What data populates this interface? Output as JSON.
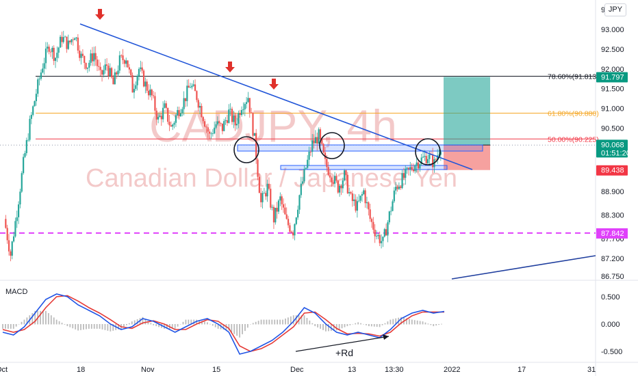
{
  "chart_data": [
    {
      "type": "candlestick",
      "title": "CADJPY, 4h",
      "subtitle": "Canadian Dollar / Japanese Yen",
      "currency": "JPY",
      "ylim": [
        86.5,
        93.25
      ],
      "y_ticks": [
        "93.000",
        "92.500",
        "92.000",
        "91.500",
        "91.000",
        "90.500",
        "88.900",
        "88.300",
        "87.700",
        "87.200",
        "86.750"
      ],
      "y_top_partial": "93",
      "x_ticks": [
        "Oct",
        "18",
        "Nov",
        "15",
        "Dec",
        "13",
        "13:30",
        "2022",
        "17",
        "31"
      ],
      "price_path": [
        {
          "t": 0,
          "p": 88.2
        },
        {
          "t": 2,
          "p": 87.3
        },
        {
          "t": 4,
          "p": 88.4
        },
        {
          "t": 6,
          "p": 89.6
        },
        {
          "t": 8,
          "p": 90.6
        },
        {
          "t": 10,
          "p": 91.4
        },
        {
          "t": 12,
          "p": 92.1
        },
        {
          "t": 14,
          "p": 92.6
        },
        {
          "t": 16,
          "p": 92.3
        },
        {
          "t": 18,
          "p": 92.8
        },
        {
          "t": 20,
          "p": 92.6
        },
        {
          "t": 22,
          "p": 92.9
        },
        {
          "t": 24,
          "p": 92.3
        },
        {
          "t": 26,
          "p": 92.1
        },
        {
          "t": 28,
          "p": 92.4
        },
        {
          "t": 30,
          "p": 91.8
        },
        {
          "t": 32,
          "p": 92.1
        },
        {
          "t": 34,
          "p": 91.6
        },
        {
          "t": 36,
          "p": 92.2
        },
        {
          "t": 38,
          "p": 92.3
        },
        {
          "t": 40,
          "p": 91.5
        },
        {
          "t": 42,
          "p": 92.0
        },
        {
          "t": 44,
          "p": 91.6
        },
        {
          "t": 46,
          "p": 91.3
        },
        {
          "t": 48,
          "p": 90.7
        },
        {
          "t": 50,
          "p": 91.0
        },
        {
          "t": 52,
          "p": 90.5
        },
        {
          "t": 54,
          "p": 90.9
        },
        {
          "t": 56,
          "p": 91.2
        },
        {
          "t": 58,
          "p": 91.6
        },
        {
          "t": 60,
          "p": 91.3
        },
        {
          "t": 62,
          "p": 90.8
        },
        {
          "t": 64,
          "p": 90.3
        },
        {
          "t": 66,
          "p": 90.6
        },
        {
          "t": 68,
          "p": 90.5
        },
        {
          "t": 70,
          "p": 90.9
        },
        {
          "t": 72,
          "p": 90.6
        },
        {
          "t": 74,
          "p": 91.1
        },
        {
          "t": 76,
          "p": 91.3
        },
        {
          "t": 78,
          "p": 90.2
        },
        {
          "t": 80,
          "p": 88.6
        },
        {
          "t": 82,
          "p": 89.0
        },
        {
          "t": 84,
          "p": 88.2
        },
        {
          "t": 86,
          "p": 88.7
        },
        {
          "t": 88,
          "p": 88.1
        },
        {
          "t": 90,
          "p": 87.9
        },
        {
          "t": 92,
          "p": 88.8
        },
        {
          "t": 94,
          "p": 89.5
        },
        {
          "t": 96,
          "p": 90.1
        },
        {
          "t": 98,
          "p": 90.3
        },
        {
          "t": 100,
          "p": 89.6
        },
        {
          "t": 102,
          "p": 89.3
        },
        {
          "t": 104,
          "p": 89.0
        },
        {
          "t": 106,
          "p": 89.3
        },
        {
          "t": 108,
          "p": 88.7
        },
        {
          "t": 110,
          "p": 88.5
        },
        {
          "t": 112,
          "p": 88.9
        },
        {
          "t": 114,
          "p": 88.2
        },
        {
          "t": 116,
          "p": 87.8
        },
        {
          "t": 118,
          "p": 87.6
        },
        {
          "t": 120,
          "p": 88.3
        },
        {
          "t": 122,
          "p": 89.0
        },
        {
          "t": 124,
          "p": 89.2
        },
        {
          "t": 126,
          "p": 89.4
        },
        {
          "t": 128,
          "p": 89.6
        },
        {
          "t": 130,
          "p": 89.7
        },
        {
          "t": 132,
          "p": 89.8
        },
        {
          "t": 134,
          "p": 89.6
        },
        {
          "t": 136,
          "p": 90.07
        }
      ],
      "series": [
        {
          "name": "MACD",
          "values": [
            -0.15,
            -0.2,
            -0.05,
            0.2,
            0.45,
            0.55,
            0.5,
            0.35,
            0.25,
            0.15,
            0.0,
            -0.1,
            -0.05,
            0.1,
            0.05,
            -0.05,
            -0.15,
            -0.05,
            0.05,
            0.1,
            0.0,
            -0.15,
            -0.55,
            -0.5,
            -0.4,
            -0.3,
            -0.15,
            0.05,
            0.3,
            0.2,
            0.0,
            -0.15,
            -0.2,
            -0.15,
            -0.2,
            -0.25,
            -0.1,
            0.1,
            0.2,
            0.25,
            0.2,
            0.23
          ]
        },
        {
          "name": "Signal",
          "values": [
            -0.1,
            -0.15,
            -0.1,
            0.05,
            0.3,
            0.5,
            0.52,
            0.42,
            0.3,
            0.2,
            0.08,
            -0.05,
            -0.08,
            0.02,
            0.06,
            0.0,
            -0.1,
            -0.1,
            0.0,
            0.08,
            0.05,
            -0.08,
            -0.4,
            -0.5,
            -0.45,
            -0.35,
            -0.2,
            -0.05,
            0.2,
            0.22,
            0.08,
            -0.08,
            -0.18,
            -0.17,
            -0.18,
            -0.22,
            -0.15,
            0.02,
            0.15,
            0.22,
            0.22,
            0.22
          ]
        }
      ],
      "macd_ticks": [
        "0.500",
        "0.000",
        "-0.500"
      ],
      "fib_levels": [
        {
          "label": "78.60%(91.813)",
          "value": 91.813,
          "color": "#131722"
        },
        {
          "label": "61.80%(90.880)",
          "value": 90.88,
          "color": "#f5a623"
        },
        {
          "label": "50.00%(90.225)",
          "value": 90.225,
          "color": "#f23645"
        }
      ],
      "support_level": {
        "value": 87.842,
        "label": "87.842",
        "color": "#e040fb"
      },
      "price_tags": [
        {
          "label": "91.797",
          "value": 91.797,
          "color": "#089981"
        },
        {
          "label": "90.071",
          "value": 90.071,
          "color": "#000000"
        },
        {
          "label": "90.068",
          "value": 90.068,
          "color": "#089981",
          "sub": "01:51:20"
        },
        {
          "label": "89.438",
          "value": 89.438,
          "color": "#f23645"
        }
      ],
      "annotations": {
        "macd_label": "MACD",
        "divergence_label": "+Rd"
      }
    }
  ]
}
